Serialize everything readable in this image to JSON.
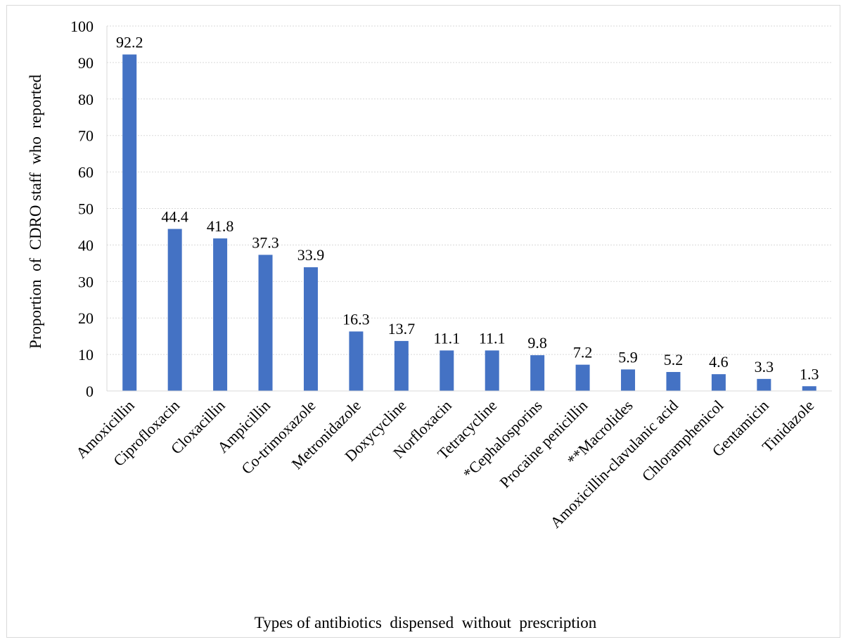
{
  "chart_data": {
    "type": "bar",
    "title": "",
    "xlabel": "Types of antibiotics  dispensed  without  prescription",
    "ylabel": "Proportion  of  CDRO staff  who  reported",
    "ylim": [
      0,
      100
    ],
    "yticks": [
      0,
      10,
      20,
      30,
      40,
      50,
      60,
      70,
      80,
      90,
      100
    ],
    "grid": true,
    "bar_color": "#4472c4",
    "categories": [
      "Amoxicillin",
      "Ciprofloxacin",
      "Cloxacillin",
      "Ampicillin",
      "Co-trimoxazole",
      "Metronidazole",
      "Doxycycline",
      "Norfloxacin",
      "Tetracycline",
      "*Cephalosporins",
      "Procaine penicillin",
      "**Macrolides",
      "Amoxicillin-clavulanic acid",
      "Chloramphenicol",
      "Gentamicin",
      "Tinidazole"
    ],
    "values": [
      92.2,
      44.4,
      41.8,
      37.3,
      33.9,
      16.3,
      13.7,
      11.1,
      11.1,
      9.8,
      7.2,
      5.9,
      5.2,
      4.6,
      3.3,
      1.3
    ],
    "data_labels": [
      "92.2",
      "44.4",
      "41.8",
      "37.3",
      "33.9",
      "16.3",
      "13.7",
      "11.1",
      "11.1",
      "9.8",
      "7.2",
      "5.9",
      "5.2",
      "4.6",
      "3.3",
      "1.3"
    ]
  }
}
